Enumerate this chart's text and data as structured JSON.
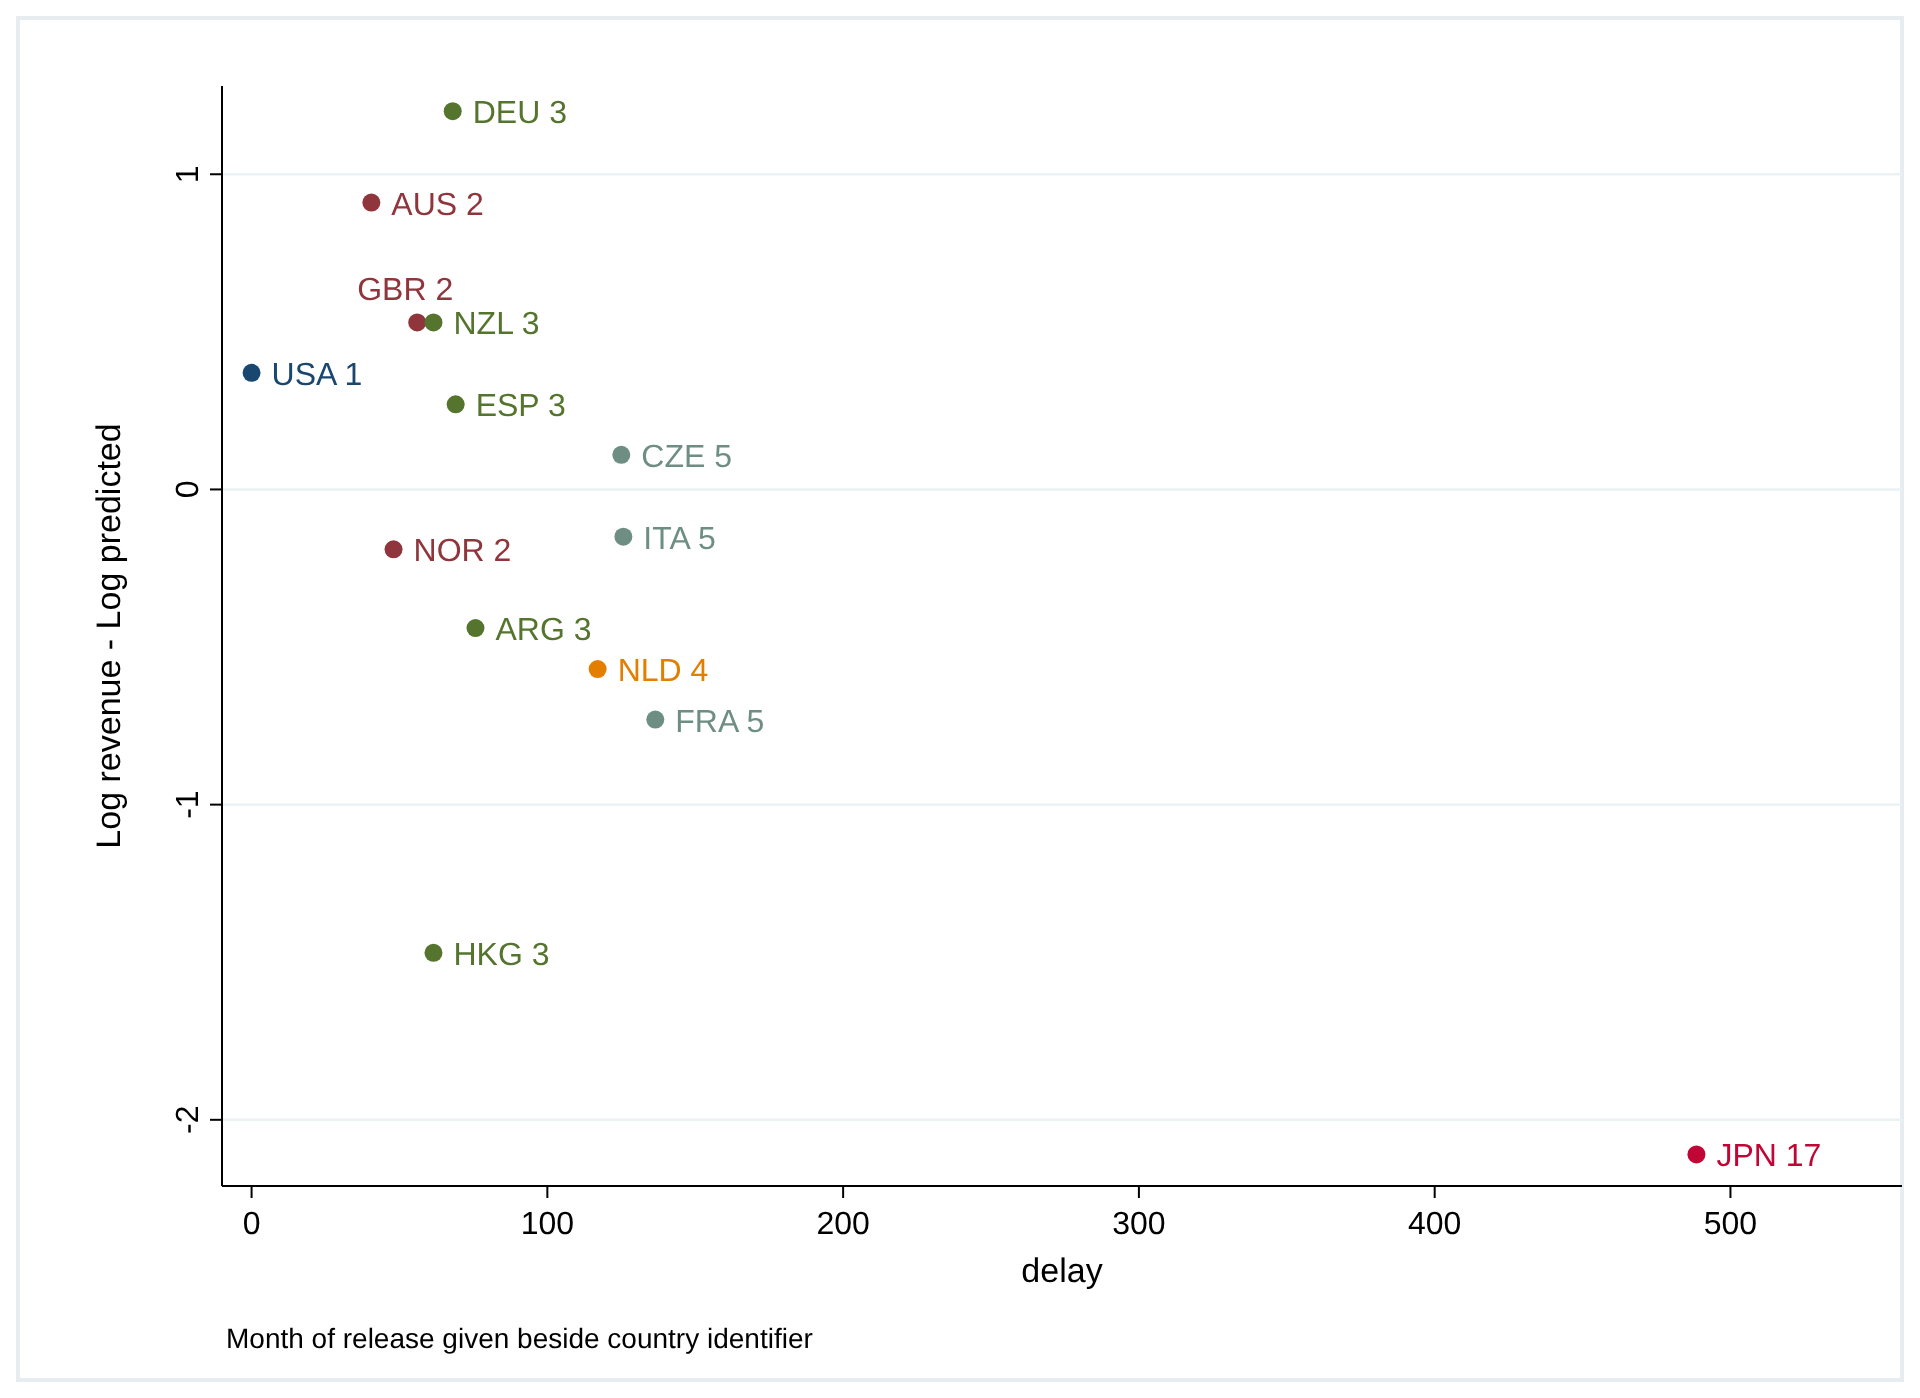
{
  "chart_data": {
    "type": "scatter",
    "xlabel": "delay",
    "ylabel": "Log revenue - Log predicted",
    "annotations": [
      "Month of release given beside country identifier"
    ],
    "xlim": [
      -10,
      558
    ],
    "ylim": [
      -2.21,
      1.28
    ],
    "xticks": [
      0,
      100,
      200,
      300,
      400,
      500
    ],
    "yticks": [
      -2,
      -1,
      0,
      1
    ],
    "grid": "y",
    "marker": "circle",
    "series": [
      {
        "color": "#1a476f",
        "x": [
          0
        ],
        "values": [
          0.37
        ],
        "value_labels": [
          "USA 1"
        ]
      },
      {
        "color": "#90353b",
        "x": [
          40.5,
          56,
          48
        ],
        "values": [
          0.91,
          0.53,
          -0.19
        ],
        "value_labels": [
          "AUS 2",
          "GBR 2",
          "NOR 2"
        ]
      },
      {
        "color": "#55752f",
        "x": [
          68,
          61.5,
          69,
          75.7,
          61.5
        ],
        "values": [
          1.2,
          0.53,
          0.27,
          -0.44,
          -1.47
        ],
        "value_labels": [
          "DEU 3",
          "NZL 3",
          "ESP 3",
          "ARG 3",
          "HKG 3"
        ]
      },
      {
        "color": "#e37e00",
        "x": [
          117
        ],
        "values": [
          -0.57
        ],
        "value_labels": [
          "NLD 4"
        ]
      },
      {
        "color": "#6e8e84",
        "x": [
          125,
          125.7,
          136.5
        ],
        "values": [
          0.11,
          -0.15,
          -0.73
        ],
        "value_labels": [
          "CZE 5",
          "ITA 5",
          "FRA 5"
        ]
      },
      {
        "color": "#c10534",
        "x": [
          488.5
        ],
        "values": [
          -2.11
        ],
        "value_labels": [
          "JPN 17"
        ]
      }
    ]
  }
}
